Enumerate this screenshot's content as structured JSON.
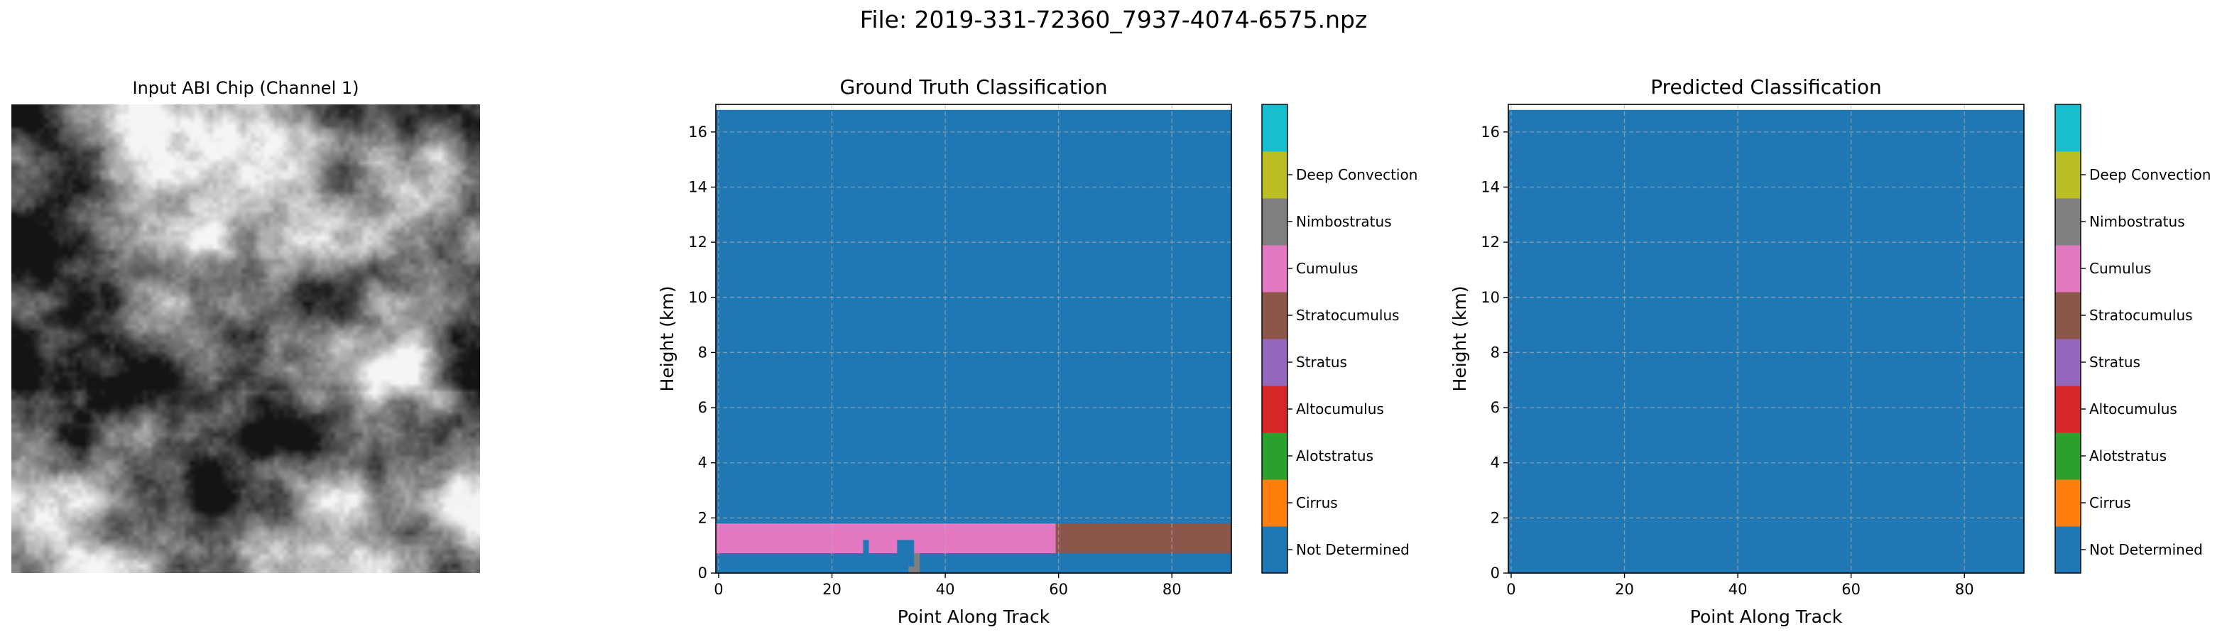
{
  "suptitle": "File: 2019-331-72360_7937-4074-6575.npz",
  "input_panel": {
    "title": "Input ABI Chip (Channel 1)",
    "colormap": "gray"
  },
  "classes": [
    {
      "label": "Not Determined",
      "color": "#1f77b4"
    },
    {
      "label": "Cirrus",
      "color": "#ff7f0e"
    },
    {
      "label": "Alotstratus",
      "color": "#2ca02c"
    },
    {
      "label": "Altocumulus",
      "color": "#d62728"
    },
    {
      "label": "Stratus",
      "color": "#9467bd"
    },
    {
      "label": "Stratocumulus",
      "color": "#8c564b"
    },
    {
      "label": "Cumulus",
      "color": "#e377c2"
    },
    {
      "label": "Nimbostratus",
      "color": "#7f7f7f"
    },
    {
      "label": "Deep Convection",
      "color": "#bcbd22"
    },
    {
      "label": "",
      "color": "#17becf"
    }
  ],
  "colorbar_labels": [
    "Not Determined",
    "Cirrus",
    "Alotstratus",
    "Altocumulus",
    "Stratus",
    "Stratocumulus",
    "Cumulus",
    "Nimbostratus",
    "Deep Convection"
  ],
  "chart_data": [
    {
      "type": "heatmap",
      "title": "Ground Truth Classification",
      "xlabel": "Point Along Track",
      "ylabel": "Height (km)",
      "xlim": [
        -0.5,
        90.5
      ],
      "ylim": [
        0,
        17
      ],
      "data_top": 16.8,
      "xticks": [
        0,
        20,
        40,
        60,
        80
      ],
      "yticks": [
        0,
        2,
        4,
        6,
        8,
        10,
        12,
        14,
        16
      ],
      "grid": true,
      "background_class": 0,
      "regions": [
        {
          "class": 6,
          "x": [
            -0.5,
            59.5
          ],
          "y": [
            0.72,
            1.8
          ]
        },
        {
          "class": 5,
          "x": [
            59.5,
            90.5
          ],
          "y": [
            0.72,
            1.8
          ]
        },
        {
          "class": 0,
          "x": [
            25.5,
            26.5
          ],
          "y": [
            0.72,
            1.2
          ]
        },
        {
          "class": 0,
          "x": [
            31.5,
            34.5
          ],
          "y": [
            0.72,
            1.2
          ]
        },
        {
          "class": 7,
          "x": [
            33.5,
            35.5
          ],
          "y": [
            0,
            0.72
          ]
        },
        {
          "class": 0,
          "x": [
            33.5,
            34.5
          ],
          "y": [
            0.24,
            0.72
          ]
        }
      ]
    },
    {
      "type": "heatmap",
      "title": "Predicted Classification",
      "xlabel": "Point Along Track",
      "ylabel": "Height (km)",
      "xlim": [
        -0.5,
        90.5
      ],
      "ylim": [
        0,
        17
      ],
      "data_top": 16.8,
      "xticks": [
        0,
        20,
        40,
        60,
        80
      ],
      "yticks": [
        0,
        2,
        4,
        6,
        8,
        10,
        12,
        14,
        16
      ],
      "grid": true,
      "background_class": 0,
      "regions": []
    }
  ]
}
